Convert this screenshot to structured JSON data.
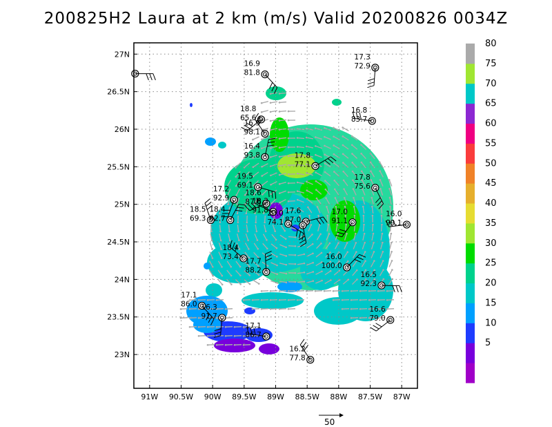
{
  "title": "200825H2 Laura at 2 km (m/s) Valid 20200826 0034Z",
  "map": {
    "lon_range": [
      -91.25,
      -86.75
    ],
    "lat_range": [
      22.55,
      27.15
    ],
    "lon_ticks": [
      {
        "value": -91.0,
        "label": "91W"
      },
      {
        "value": -90.5,
        "label": "90.5W"
      },
      {
        "value": -90.0,
        "label": "90W"
      },
      {
        "value": -89.5,
        "label": "89.5W"
      },
      {
        "value": -89.0,
        "label": "89W"
      },
      {
        "value": -88.5,
        "label": "88.5W"
      },
      {
        "value": -88.0,
        "label": "88W"
      },
      {
        "value": -87.5,
        "label": "87.5W"
      },
      {
        "value": -87.0,
        "label": "87W"
      }
    ],
    "lat_ticks": [
      {
        "value": 23.0,
        "label": "23N"
      },
      {
        "value": 23.5,
        "label": "23.5N"
      },
      {
        "value": 24.0,
        "label": "24N"
      },
      {
        "value": 24.5,
        "label": "24.5N"
      },
      {
        "value": 25.0,
        "label": "25N"
      },
      {
        "value": 25.5,
        "label": "25.5N"
      },
      {
        "value": 26.0,
        "label": "26N"
      },
      {
        "value": 26.5,
        "label": "26.5N"
      },
      {
        "value": 27.0,
        "label": "27N"
      }
    ],
    "grid": "dotted"
  },
  "colorbar": {
    "levels": [
      {
        "label": "",
        "color": "#a000c8"
      },
      {
        "label": "5",
        "color": "#7800dc"
      },
      {
        "label": "10",
        "color": "#1e3cff"
      },
      {
        "label": "15",
        "color": "#00a0ff"
      },
      {
        "label": "20",
        "color": "#00c8c8"
      },
      {
        "label": "25",
        "color": "#00d28c"
      },
      {
        "label": "30",
        "color": "#00dc00"
      },
      {
        "label": "35",
        "color": "#a0e632"
      },
      {
        "label": "40",
        "color": "#e6dc32"
      },
      {
        "label": "45",
        "color": "#e6af2d"
      },
      {
        "label": "50",
        "color": "#f08228"
      },
      {
        "label": "55",
        "color": "#fa3c3c"
      },
      {
        "label": "60",
        "color": "#f00082"
      },
      {
        "label": "65",
        "color": "#8c28d2"
      },
      {
        "label": "70",
        "color": "#00c8c8"
      },
      {
        "label": "75",
        "color": "#a0e632"
      },
      {
        "label": "80",
        "color": "#aaaaaa"
      }
    ]
  },
  "scale_vector": {
    "label": "50",
    "value": 50
  },
  "stations": [
    {
      "lon": -91.23,
      "lat": 26.74,
      "l1": "",
      "l2": ""
    },
    {
      "lon": -89.17,
      "lat": 26.73,
      "l1": "16.9",
      "l2": "81.8"
    },
    {
      "lon": -87.42,
      "lat": 26.82,
      "l1": "17.3",
      "l2": "72.9"
    },
    {
      "lon": -89.23,
      "lat": 26.13,
      "l1": "18.8",
      "l2": "65.6"
    },
    {
      "lon": -87.47,
      "lat": 26.11,
      "l1": "16.8",
      "l2": "83.7"
    },
    {
      "lon": -89.17,
      "lat": 25.94,
      "l1": "16.9",
      "l2": "98.1"
    },
    {
      "lon": -89.17,
      "lat": 25.63,
      "l1": "16.4",
      "l2": "93.8"
    },
    {
      "lon": -88.37,
      "lat": 25.51,
      "l1": "17.8",
      "l2": "77.1"
    },
    {
      "lon": -89.28,
      "lat": 25.23,
      "l1": "19.5",
      "l2": "69.1"
    },
    {
      "lon": -87.42,
      "lat": 25.22,
      "l1": "17.8",
      "l2": "75.6"
    },
    {
      "lon": -89.66,
      "lat": 25.06,
      "l1": "17.2",
      "l2": "92.9"
    },
    {
      "lon": -89.15,
      "lat": 25.01,
      "l1": "18.6",
      "l2": "87.6"
    },
    {
      "lon": -89.04,
      "lat": 24.9,
      "l1": "18.3",
      "l2": "91.8"
    },
    {
      "lon": -90.03,
      "lat": 24.79,
      "l1": "18.5",
      "l2": "69.3"
    },
    {
      "lon": -89.72,
      "lat": 24.79,
      "l1": "18.4",
      "l2": "82.7"
    },
    {
      "lon": -88.52,
      "lat": 24.77,
      "l1": "17.6",
      "l2": "87.0"
    },
    {
      "lon": -88.8,
      "lat": 24.74,
      "l1": "20.0",
      "l2": "74.1"
    },
    {
      "lon": -88.57,
      "lat": 24.72,
      "l1": "",
      "l2": ""
    },
    {
      "lon": -87.78,
      "lat": 24.76,
      "l1": "17.0",
      "l2": "91.1"
    },
    {
      "lon": -86.92,
      "lat": 24.73,
      "l1": "16.0",
      "l2": "99.1"
    },
    {
      "lon": -89.51,
      "lat": 24.28,
      "l1": "18.4",
      "l2": "73.4"
    },
    {
      "lon": -89.15,
      "lat": 24.1,
      "l1": "17.7",
      "l2": "88.2"
    },
    {
      "lon": -87.87,
      "lat": 24.16,
      "l1": "16.0",
      "l2": "100.0"
    },
    {
      "lon": -87.32,
      "lat": 23.92,
      "l1": "16.5",
      "l2": "92.3"
    },
    {
      "lon": -90.17,
      "lat": 23.65,
      "l1": "17.1",
      "l2": "86.0"
    },
    {
      "lon": -89.85,
      "lat": 23.49,
      "l1": "16.3",
      "l2": "91.7"
    },
    {
      "lon": -87.18,
      "lat": 23.46,
      "l1": "16.6",
      "l2": "79.0"
    },
    {
      "lon": -89.15,
      "lat": 23.24,
      "l1": "17.1",
      "l2": "86.7"
    },
    {
      "lon": -88.45,
      "lat": 22.93,
      "l1": "16.2",
      "l2": "77.8"
    }
  ]
}
